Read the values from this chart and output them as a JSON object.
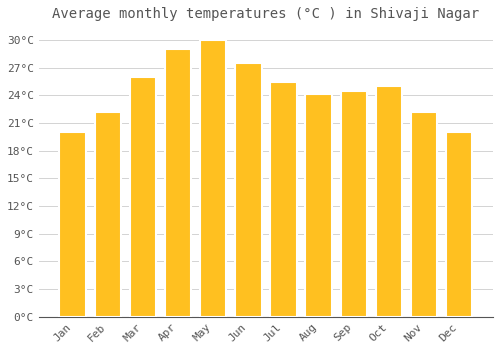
{
  "title": "Average monthly temperatures (°C ) in Shivaji Nagar",
  "months": [
    "Jan",
    "Feb",
    "Mar",
    "Apr",
    "May",
    "Jun",
    "Jul",
    "Aug",
    "Sep",
    "Oct",
    "Nov",
    "Dec"
  ],
  "values": [
    20.0,
    22.2,
    26.0,
    29.0,
    30.0,
    27.5,
    25.5,
    24.2,
    24.5,
    25.0,
    22.2,
    20.0
  ],
  "bar_color": "#FFC020",
  "bar_edge_color": "#E8A000",
  "background_color": "#FFFFFF",
  "grid_color": "#CCCCCC",
  "text_color": "#555555",
  "ylim": [
    0,
    31.5
  ],
  "yticks": [
    0,
    3,
    6,
    9,
    12,
    15,
    18,
    21,
    24,
    27,
    30
  ],
  "ytick_labels": [
    "0°C",
    "3°C",
    "6°C",
    "9°C",
    "12°C",
    "15°C",
    "18°C",
    "21°C",
    "24°C",
    "27°C",
    "30°C"
  ],
  "title_fontsize": 10,
  "tick_fontsize": 8,
  "bar_width": 0.75
}
